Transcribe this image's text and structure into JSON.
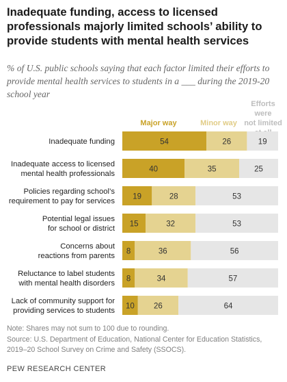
{
  "title": "Inadequate funding, access to licensed professionals majorly limited schools’ ability to provide students with mental health services",
  "subtitle": "% of U.S. public schools saying that each factor limited their efforts to provide mental health services to students in a ___ during the 2019-20 school year",
  "colors": {
    "major": "#c9a227",
    "minor": "#e5d391",
    "none": "#e6e6e6",
    "legend_major": "#c9a227",
    "legend_minor": "#e1cc86",
    "legend_none": "#bdbdbd"
  },
  "chart_data": {
    "type": "bar",
    "orientation": "horizontal",
    "stacked": true,
    "categories": [
      [
        "Inadequate funding"
      ],
      [
        "Inadequate access to licensed",
        "mental health professionals"
      ],
      [
        "Policies regarding school’s",
        "requirement to pay for services"
      ],
      [
        "Potential legal issues",
        "for school or district"
      ],
      [
        "Concerns about",
        "reactions from parents"
      ],
      [
        "Reluctance to label students",
        "with mental health disorders"
      ],
      [
        "Lack of community support for",
        "providing services to students"
      ]
    ],
    "series": [
      {
        "name": "Major way",
        "values": [
          54,
          40,
          19,
          15,
          8,
          8,
          10
        ]
      },
      {
        "name": "Minor way",
        "values": [
          26,
          35,
          28,
          32,
          36,
          34,
          26
        ]
      },
      {
        "name": "Efforts were not limited at all",
        "values": [
          19,
          25,
          53,
          53,
          56,
          57,
          64
        ]
      }
    ],
    "xlim": [
      0,
      100
    ],
    "legend_position": "top"
  },
  "legend": {
    "major": "Major way",
    "minor": "Minor way",
    "none_lines": [
      "Efforts were",
      "not limited",
      "at all"
    ]
  },
  "notes": [
    "Note: Shares may not sum to 100 due to rounding.",
    "Source: U.S. Department of Education, National Center for Education Statistics,",
    "2019–20 School Survey on Crime and Safety (SSOCS)."
  ],
  "source_label": "PEW RESEARCH CENTER"
}
